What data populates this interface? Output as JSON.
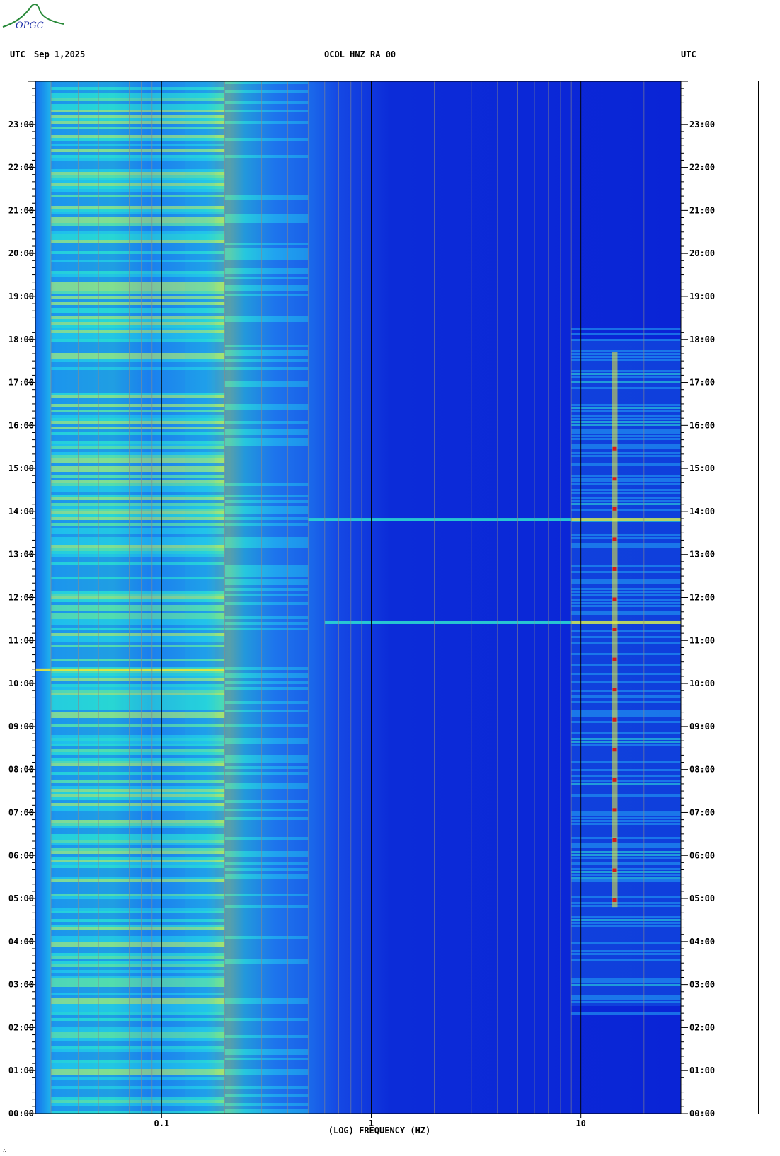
{
  "header": {
    "left_tz": "UTC",
    "date": "Sep 1,2025",
    "station": "OCOL HNZ RA 00",
    "right_tz": "UTC"
  },
  "logo": {
    "text": "OPGC"
  },
  "colors": {
    "background_low": "#0a20d8",
    "mid": "#1fd6e0",
    "high": "#e8e83a",
    "peak": "#d81818",
    "grid": "#8a8a8a"
  },
  "chart_data": {
    "type": "heatmap",
    "title": "OCOL HNZ RA 00",
    "xlabel": "(LOG) FREQUENCY (HZ)",
    "ylabel": "UTC",
    "x_scale": "log",
    "xlim": [
      0.025,
      30
    ],
    "x_ticks": [
      {
        "value": 0.1,
        "label": "0.1"
      },
      {
        "value": 1,
        "label": "1"
      },
      {
        "value": 10,
        "label": "10"
      }
    ],
    "ylim": [
      "00:00",
      "24:00"
    ],
    "y_ticks": [
      "00:00",
      "01:00",
      "02:00",
      "03:00",
      "04:00",
      "05:00",
      "06:00",
      "07:00",
      "08:00",
      "09:00",
      "10:00",
      "11:00",
      "12:00",
      "13:00",
      "14:00",
      "15:00",
      "16:00",
      "17:00",
      "18:00",
      "19:00",
      "20:00",
      "21:00",
      "22:00",
      "23:00"
    ],
    "grid": true,
    "features": [
      {
        "label": "microseism band",
        "freq_range_hz": [
          0.025,
          0.2
        ],
        "level": "high"
      },
      {
        "label": "secondary microseism peak",
        "freq_range_hz": [
          0.13,
          0.18
        ],
        "level": "high"
      },
      {
        "label": "broadband event",
        "hour": 10.3,
        "freq_range_hz": [
          0.025,
          0.2
        ],
        "level": "high"
      },
      {
        "label": "broadband line",
        "hour": 13.8,
        "freq_range_hz": [
          0.5,
          30
        ],
        "level": "peak"
      },
      {
        "label": "broadband line",
        "hour": 11.4,
        "freq_range_hz": [
          0.6,
          30
        ],
        "level": "peak"
      },
      {
        "label": "cultural noise",
        "hours": [
          2.5,
          18.0
        ],
        "freq_range_hz": [
          9,
          30
        ],
        "level": "peak"
      },
      {
        "label": "tonal line",
        "freq_hz": 14.5,
        "level": "peak"
      }
    ]
  }
}
